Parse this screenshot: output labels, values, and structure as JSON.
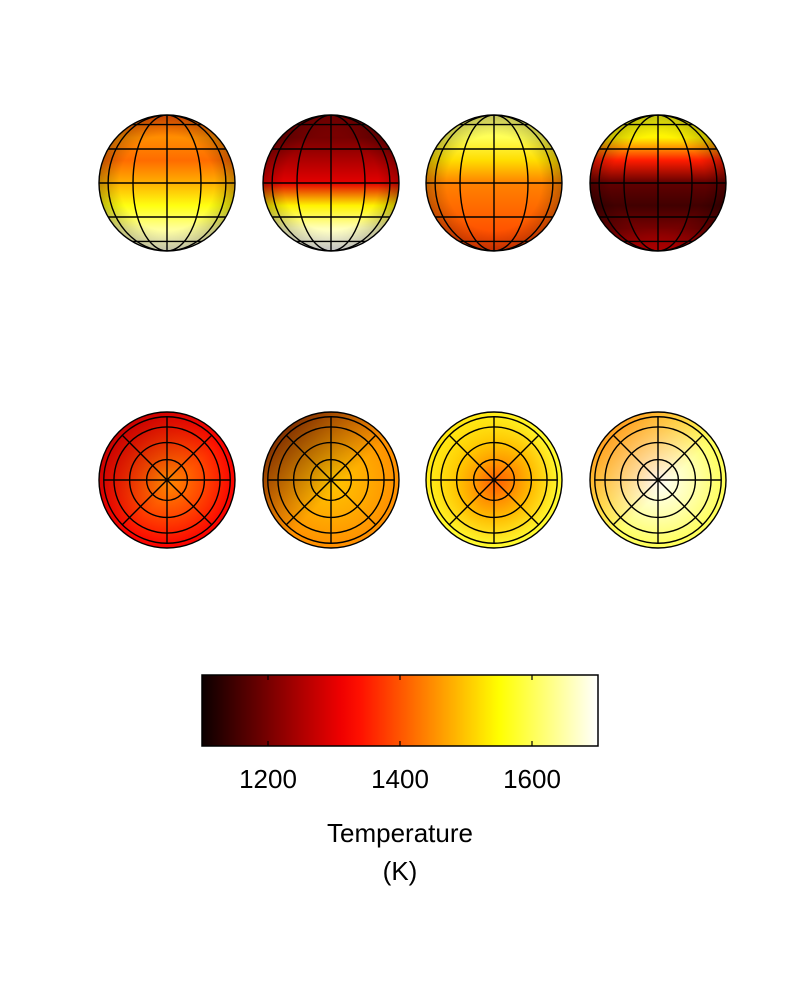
{
  "chart_data": {
    "type": "heatmap",
    "description_rows": [
      "equatorial views",
      "polar views"
    ],
    "globes": [
      {
        "row": 0,
        "col": 0,
        "view": "side",
        "bands": [
          1400,
          1450,
          1420,
          1480,
          1560,
          1640,
          1680
        ]
      },
      {
        "row": 0,
        "col": 1,
        "view": "side",
        "bands": [
          1220,
          1200,
          1250,
          1300,
          1540,
          1660,
          1700
        ]
      },
      {
        "row": 0,
        "col": 2,
        "view": "side",
        "bands": [
          1620,
          1600,
          1520,
          1440,
          1420,
          1400,
          1380
        ]
      },
      {
        "row": 0,
        "col": 3,
        "view": "side",
        "bands": [
          1560,
          1540,
          1350,
          1180,
          1150,
          1200,
          1300
        ]
      },
      {
        "row": 1,
        "col": 0,
        "view": "pole",
        "center": 1450,
        "edge": 1320,
        "dark_side": 1250
      },
      {
        "row": 1,
        "col": 1,
        "view": "pole",
        "center": 1500,
        "edge": 1450,
        "dark_side": 1150
      },
      {
        "row": 1,
        "col": 2,
        "view": "pole",
        "center": 1400,
        "edge": 1580,
        "dark_side": 1520
      },
      {
        "row": 1,
        "col": 3,
        "view": "pole",
        "center": 1700,
        "edge": 1600,
        "dark_side": 1420
      }
    ],
    "colorbar": {
      "colormap": "hot",
      "range": [
        1100,
        1700
      ],
      "ticks": [
        1200,
        1400,
        1600
      ],
      "tick_labels": [
        "1200",
        "1400",
        "1600"
      ],
      "label_line1": "Temperature",
      "label_line2": "(K)"
    }
  }
}
